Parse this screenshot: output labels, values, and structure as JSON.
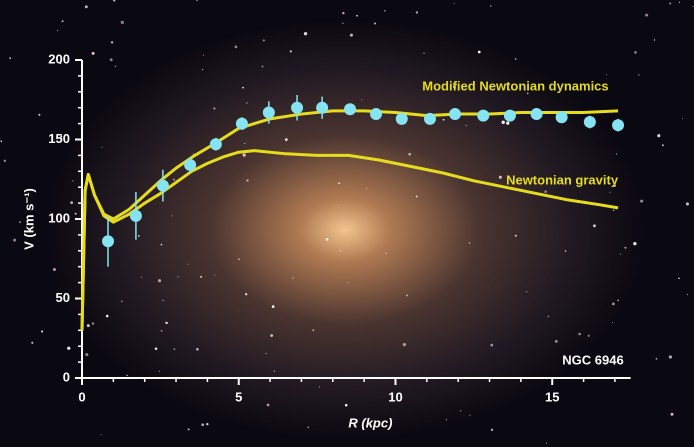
{
  "chart_data": {
    "type": "line",
    "xlabel": "R (kpc)",
    "ylabel": "V (km s⁻¹)",
    "annotation": "NGC 6946",
    "xlim": [
      0,
      17.5
    ],
    "ylim": [
      0,
      200
    ],
    "xticks": [
      0,
      5,
      10,
      15
    ],
    "yticks": [
      0,
      50,
      100,
      150,
      200
    ],
    "xminorticks": [
      1,
      2,
      3,
      4,
      6,
      7,
      8,
      9,
      11,
      12,
      13,
      14,
      16,
      17
    ],
    "yminorticks": [
      10,
      20,
      30,
      40,
      60,
      70,
      80,
      90,
      110,
      120,
      130,
      140,
      160,
      170,
      180,
      190
    ],
    "series": [
      {
        "name": "Modified Newtonian dynamics",
        "color": "#e6dc1e",
        "x": [
          0,
          0.1,
          0.2,
          0.4,
          0.7,
          1.0,
          1.5,
          2.0,
          2.5,
          3.0,
          3.6,
          4.2,
          5.0,
          6.0,
          7.0,
          8.0,
          9.0,
          10.0,
          11.0,
          12.0,
          13.0,
          14.0,
          15.0,
          16.0,
          17.1
        ],
        "values": [
          30,
          118,
          128,
          115,
          103,
          100,
          106,
          115,
          124,
          132,
          140,
          147,
          157,
          163,
          166,
          168,
          168,
          167,
          165,
          166,
          166,
          167,
          167,
          167,
          168
        ]
      },
      {
        "name": "Newtonian gravity",
        "color": "#e6dc1e",
        "x": [
          0,
          0.1,
          0.2,
          0.4,
          0.7,
          1.0,
          1.5,
          2.0,
          2.5,
          3.0,
          3.5,
          4.0,
          4.5,
          5.0,
          5.5,
          6.5,
          7.5,
          8.5,
          9.5,
          10.5,
          11.5,
          12.5,
          13.5,
          14.5,
          15.5,
          16.5,
          17.1
        ],
        "values": [
          30,
          118,
          128,
          115,
          102,
          98,
          103,
          110,
          116,
          123,
          130,
          135,
          139,
          142,
          143,
          141,
          140,
          140,
          137,
          133,
          129,
          124,
          120,
          116,
          112,
          109,
          107
        ]
      },
      {
        "type": "scatter",
        "color": "#86e4f2",
        "x": [
          0.83,
          1.72,
          2.58,
          3.45,
          4.27,
          5.1,
          5.96,
          6.86,
          7.66,
          8.55,
          9.38,
          10.2,
          11.1,
          11.9,
          12.8,
          13.65,
          14.5,
          15.3,
          16.2,
          17.1
        ],
        "values": [
          86,
          102,
          121,
          134,
          147,
          160,
          167,
          170,
          170,
          169,
          166,
          163,
          163,
          166,
          165,
          165,
          166,
          164,
          161,
          159
        ],
        "errors": [
          16,
          15,
          10,
          5,
          4,
          4,
          7,
          8,
          7,
          3,
          3,
          3,
          3,
          3,
          3,
          3,
          3,
          3,
          4,
          4
        ]
      }
    ]
  }
}
